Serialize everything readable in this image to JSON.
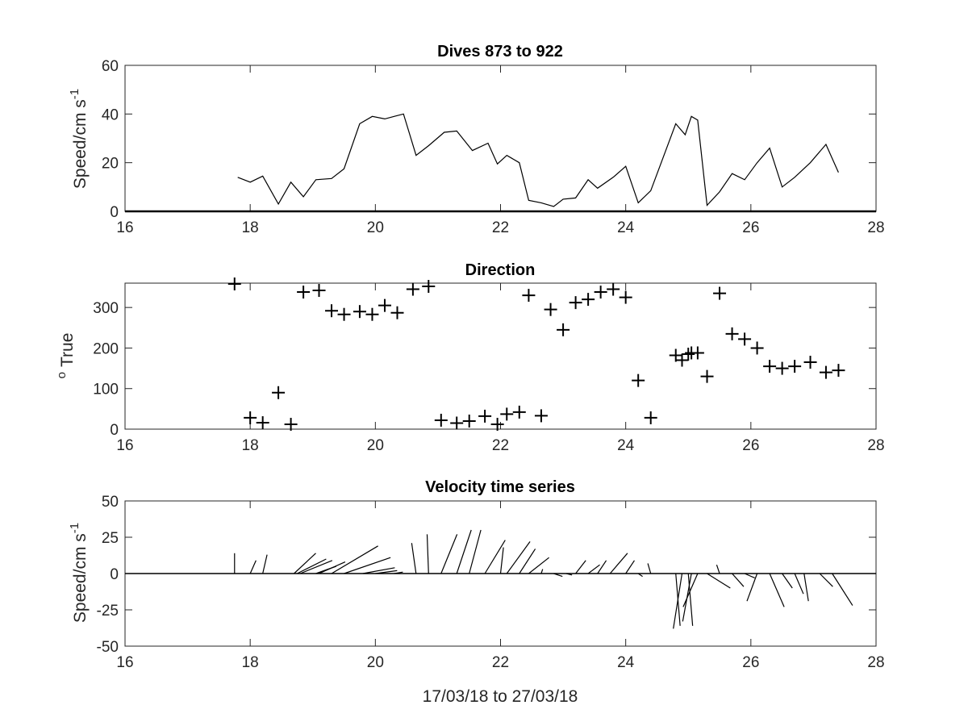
{
  "chart_data": [
    {
      "type": "line",
      "title": "Dives 873 to 922",
      "xlabel": "",
      "ylabel": "Speed/cm s",
      "ylabel_sup": "-1",
      "xlim": [
        16,
        28
      ],
      "ylim": [
        0,
        60
      ],
      "xticks": [
        16,
        18,
        20,
        22,
        24,
        26,
        28
      ],
      "yticks": [
        0,
        20,
        40,
        60
      ],
      "baseline": 0,
      "color": "#000000",
      "x": [
        17.8,
        18.0,
        18.2,
        18.45,
        18.65,
        18.85,
        19.05,
        19.3,
        19.5,
        19.75,
        19.95,
        20.15,
        20.3,
        20.45,
        20.65,
        20.85,
        21.1,
        21.3,
        21.55,
        21.8,
        21.95,
        22.1,
        22.3,
        22.45,
        22.65,
        22.85,
        23.0,
        23.2,
        23.4,
        23.55,
        23.8,
        24.0,
        24.2,
        24.4,
        24.8,
        24.95,
        25.05,
        25.15,
        25.3,
        25.5,
        25.7,
        25.9,
        26.1,
        26.3,
        26.5,
        26.7,
        26.95,
        27.2,
        27.4
      ],
      "y": [
        14,
        12,
        14.5,
        3,
        12,
        6,
        13,
        13.5,
        17.5,
        36,
        39,
        38,
        39,
        40,
        23,
        27,
        32.5,
        33,
        25,
        28,
        19.5,
        23,
        20,
        4.5,
        3.5,
        2,
        5,
        5.5,
        13,
        9.5,
        14,
        18.5,
        3.5,
        8.5,
        36,
        31.5,
        39,
        37.5,
        2.5,
        8,
        15.5,
        13,
        20,
        26,
        10,
        14,
        20,
        27.5,
        16
      ]
    },
    {
      "type": "scatter",
      "title": "Direction",
      "xlabel": "",
      "ylabel": "True",
      "ylabel_sup": "o",
      "xlim": [
        16,
        28
      ],
      "ylim": [
        0,
        360
      ],
      "xticks": [
        16,
        18,
        20,
        22,
        24,
        26,
        28
      ],
      "yticks": [
        0,
        100,
        200,
        300
      ],
      "marker": "+",
      "color": "#000000",
      "x": [
        17.75,
        18.0,
        18.2,
        18.45,
        18.65,
        18.85,
        19.1,
        19.3,
        19.5,
        19.75,
        19.95,
        20.15,
        20.35,
        20.6,
        20.85,
        21.05,
        21.3,
        21.5,
        21.75,
        21.95,
        22.1,
        22.3,
        22.45,
        22.65,
        22.8,
        23.0,
        23.2,
        23.4,
        23.6,
        23.8,
        24.0,
        24.2,
        24.4,
        24.8,
        24.9,
        25.0,
        25.05,
        25.15,
        25.3,
        25.5,
        25.7,
        25.9,
        26.1,
        26.3,
        26.5,
        26.7,
        26.95,
        27.2,
        27.4
      ],
      "y": [
        358,
        28,
        16,
        90,
        12,
        338,
        342,
        292,
        283,
        290,
        283,
        305,
        287,
        345,
        352,
        22,
        15,
        20,
        32,
        12,
        37,
        42,
        330,
        33,
        295,
        245,
        312,
        320,
        338,
        345,
        325,
        120,
        28,
        182,
        170,
        185,
        188,
        188,
        130,
        335,
        235,
        222,
        200,
        155,
        150,
        155,
        165,
        140,
        145
      ]
    },
    {
      "type": "line",
      "subtype": "stick-plot",
      "title": "Velocity time series",
      "xlabel": "17/03/18 to 27/03/18",
      "ylabel": "Speed/cm s",
      "ylabel_sup": "-1",
      "xlim": [
        16,
        28
      ],
      "ylim": [
        -50,
        50
      ],
      "xticks": [
        16,
        18,
        20,
        22,
        24,
        26,
        28
      ],
      "yticks": [
        -50,
        -25,
        0,
        25,
        50
      ],
      "zero_line": true,
      "color": "#000000",
      "sticks": [
        {
          "x": 17.75,
          "u": 0,
          "v": 14
        },
        {
          "x": 18.0,
          "u": 4,
          "v": 9
        },
        {
          "x": 18.2,
          "u": 3,
          "v": 13
        },
        {
          "x": 18.7,
          "u": 15,
          "v": 14
        },
        {
          "x": 18.75,
          "u": 20,
          "v": 10
        },
        {
          "x": 18.8,
          "u": 22,
          "v": 9
        },
        {
          "x": 19.1,
          "u": 18,
          "v": 8
        },
        {
          "x": 19.05,
          "u": 14,
          "v": 5
        },
        {
          "x": 19.3,
          "u": 32,
          "v": 19
        },
        {
          "x": 19.5,
          "u": 32,
          "v": 11
        },
        {
          "x": 19.8,
          "u": 22,
          "v": 4
        },
        {
          "x": 20.0,
          "u": 15,
          "v": 2
        },
        {
          "x": 20.3,
          "u": 6,
          "v": 1
        },
        {
          "x": 20.65,
          "u": -3,
          "v": 21
        },
        {
          "x": 20.85,
          "u": -1,
          "v": 27
        },
        {
          "x": 21.05,
          "u": 11,
          "v": 27
        },
        {
          "x": 21.3,
          "u": 10,
          "v": 30
        },
        {
          "x": 21.5,
          "u": 8,
          "v": 30
        },
        {
          "x": 21.75,
          "u": 14,
          "v": 23
        },
        {
          "x": 22.0,
          "u": 2,
          "v": 18
        },
        {
          "x": 22.1,
          "u": 16,
          "v": 22
        },
        {
          "x": 22.3,
          "u": 11,
          "v": 17
        },
        {
          "x": 22.45,
          "u": 14,
          "v": 11
        },
        {
          "x": 22.65,
          "u": 1,
          "v": 3
        },
        {
          "x": 22.85,
          "u": 6,
          "v": -2
        },
        {
          "x": 23.05,
          "u": 4,
          "v": -1
        },
        {
          "x": 23.2,
          "u": 7,
          "v": 9
        },
        {
          "x": 23.4,
          "u": 8,
          "v": 6
        },
        {
          "x": 23.55,
          "u": 6,
          "v": 9
        },
        {
          "x": 23.75,
          "u": 12,
          "v": 14
        },
        {
          "x": 24.0,
          "u": 6,
          "v": 9
        },
        {
          "x": 24.2,
          "u": 3,
          "v": -2
        },
        {
          "x": 24.4,
          "u": -2,
          "v": 7
        },
        {
          "x": 24.8,
          "u": 3,
          "v": -36
        },
        {
          "x": 24.9,
          "u": -6,
          "v": -38
        },
        {
          "x": 25.0,
          "u": 3,
          "v": -36
        },
        {
          "x": 25.05,
          "u": -6,
          "v": -33
        },
        {
          "x": 25.15,
          "u": -10,
          "v": -23
        },
        {
          "x": 25.3,
          "u": 16,
          "v": -10
        },
        {
          "x": 25.5,
          "u": -2,
          "v": 6
        },
        {
          "x": 25.7,
          "u": 8,
          "v": -9
        },
        {
          "x": 25.9,
          "u": 7,
          "v": -3
        },
        {
          "x": 26.1,
          "u": -7,
          "v": -19
        },
        {
          "x": 26.3,
          "u": 10,
          "v": -23
        },
        {
          "x": 26.5,
          "u": 7,
          "v": -10
        },
        {
          "x": 26.7,
          "u": 6,
          "v": -14
        },
        {
          "x": 26.85,
          "u": 3,
          "v": -19
        },
        {
          "x": 27.1,
          "u": 9,
          "v": -9
        },
        {
          "x": 27.3,
          "u": 14,
          "v": -22
        }
      ]
    }
  ]
}
